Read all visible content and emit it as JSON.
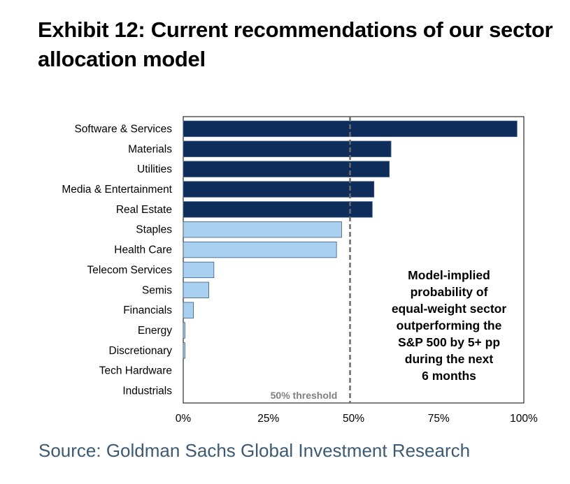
{
  "title": {
    "line1": "Exhibit 12: Current recommendations of our sector",
    "line2": "allocation model"
  },
  "source": "Source: Goldman Sachs Global Investment Research",
  "colors": {
    "above_threshold": "#0f2d5a",
    "below_threshold": "#a9d0ef",
    "bar_edge": "#3a5a80",
    "threshold_line": "#6b6b6b",
    "threshold_label": "#808080"
  },
  "chart_data": {
    "type": "bar",
    "orientation": "horizontal",
    "categories": [
      "Software & Services",
      "Materials",
      "Utilities",
      "Media & Entertainment",
      "Real Estate",
      "Staples",
      "Health Care",
      "Telecom Services",
      "Semis",
      "Financials",
      "Energy",
      "Discretionary",
      "Tech Hardware",
      "Industrials"
    ],
    "values": [
      98,
      61,
      60.5,
      56,
      55.5,
      46.5,
      45,
      9,
      7.5,
      3,
      0.5,
      0.5,
      0,
      0
    ],
    "xlim": [
      0,
      100
    ],
    "xticks": [
      0,
      25,
      50,
      75,
      100
    ],
    "xtick_labels": [
      "0%",
      "25%",
      "50%",
      "75%",
      "100%"
    ],
    "threshold": 50,
    "threshold_label": "50% threshold",
    "annotation": [
      "Model-implied",
      "probability of",
      "equal-weight sector",
      "outperforming the",
      "S&P 500 by 5+ pp",
      "during the next",
      "6 months"
    ],
    "grid": false,
    "legend": "none"
  }
}
